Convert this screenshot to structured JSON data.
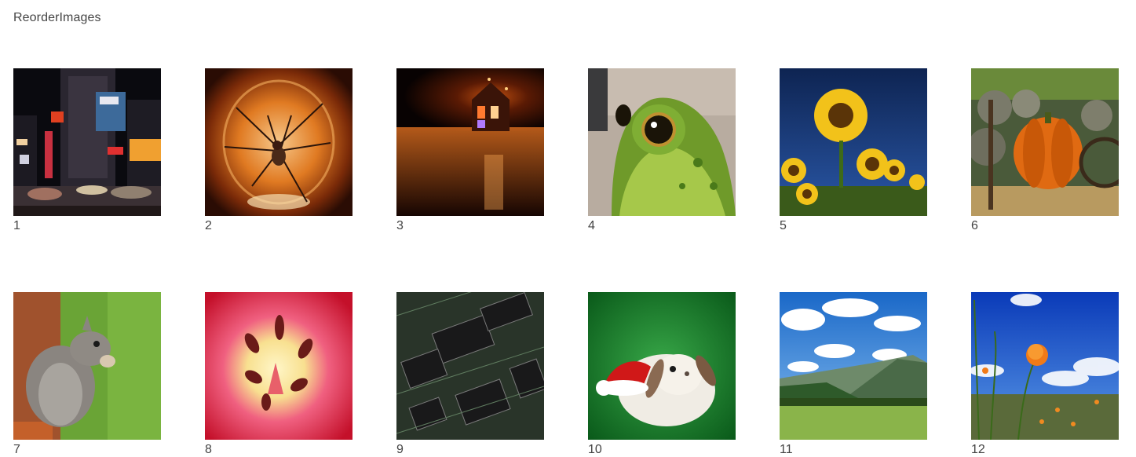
{
  "page": {
    "title": "ReorderImages"
  },
  "images": [
    {
      "label": "1",
      "subject": "city-night-street-image"
    },
    {
      "label": "2",
      "subject": "spider-in-glass-image"
    },
    {
      "label": "3",
      "subject": "candle-house-image"
    },
    {
      "label": "4",
      "subject": "frog-image"
    },
    {
      "label": "5",
      "subject": "sunflowers-image"
    },
    {
      "label": "6",
      "subject": "pumpkin-image"
    },
    {
      "label": "7",
      "subject": "squirrel-image"
    },
    {
      "label": "8",
      "subject": "tulip-closeup-image"
    },
    {
      "label": "9",
      "subject": "circuit-board-image"
    },
    {
      "label": "10",
      "subject": "bunny-santa-hat-image"
    },
    {
      "label": "11",
      "subject": "mountain-valley-image"
    },
    {
      "label": "12",
      "subject": "poppy-blue-sky-image"
    }
  ]
}
